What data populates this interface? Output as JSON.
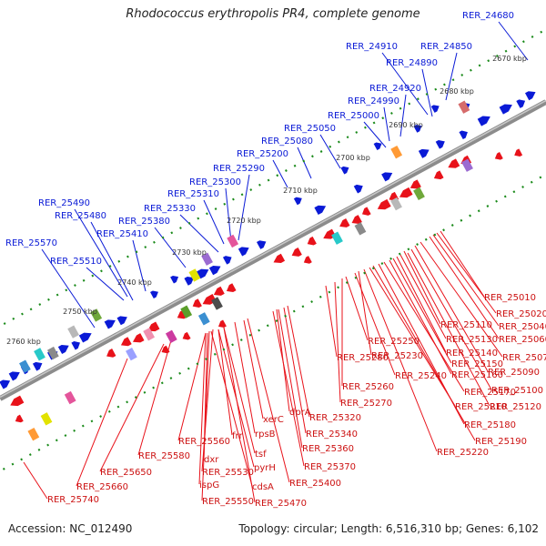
{
  "title": "Rhodococcus erythropolis PR4, complete genome",
  "footer": {
    "accession": "Accession: NC_012490",
    "stats": "Topology: circular; Length: 6,516,310 bp; Genes: 6,102"
  },
  "colors": {
    "forward": "#0a1ad6",
    "reverse": "#e8121a",
    "backbone": "#8c8c8c",
    "tick": "#1a8a1a"
  },
  "kbp_ticks": [
    "2670 kbp",
    "2680 kbp",
    "2690 kbp",
    "2700 kbp",
    "2710 kbp",
    "2720 kbp",
    "2730 kbp",
    "2740 kbp",
    "2750 kbp",
    "2760 kbp"
  ],
  "forward_labels": [
    "RER_24680",
    "RER_24850",
    "RER_24910",
    "RER_24890",
    "RER_24920",
    "RER_24990",
    "RER_25000",
    "RER_25050",
    "RER_25080",
    "RER_25200",
    "RER_25290",
    "RER_25300",
    "RER_25310",
    "RER_25330",
    "RER_25380",
    "RER_25410",
    "RER_25490",
    "RER_25480",
    "RER_25570",
    "RER_25510"
  ],
  "reverse_labels": [
    "RER_25010",
    "RER_25020",
    "RER_25040",
    "RER_25060",
    "RER_25070",
    "RER_25090",
    "RER_25100",
    "RER_25110",
    "RER_25120",
    "RER_25130",
    "RER_25140",
    "RER_25150",
    "RER_25160",
    "RER_25170",
    "RER_25180",
    "RER_25190",
    "RER_25210",
    "RER_25220",
    "RER_25230",
    "RER_25240",
    "RER_25250",
    "RER_25260",
    "RER_25270",
    "RER_25280",
    "RER_25320",
    "RER_25340",
    "RER_25360",
    "RER_25370",
    "RER_25400",
    "RER_25470",
    "RER_25530",
    "RER_25550",
    "RER_25560",
    "RER_25580",
    "RER_25650",
    "RER_25660",
    "RER_25740",
    "dprA",
    "xerC",
    "rpsB",
    "tsf",
    "frr",
    "pyrH",
    "cdsA",
    "dxr",
    "ispG"
  ]
}
